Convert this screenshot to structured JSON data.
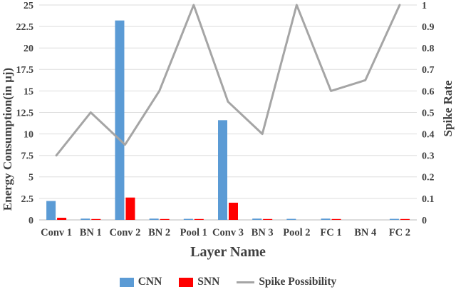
{
  "chart_data": {
    "type": "combo-bar-line",
    "categories": [
      "Conv 1",
      "BN 1",
      "Conv 2",
      "BN 2",
      "Pool 1",
      "Conv 3",
      "BN 3",
      "Pool 2",
      "FC 1",
      "BN 4",
      "FC 2"
    ],
    "series": [
      {
        "name": "CNN",
        "type": "bar",
        "axis": "left",
        "color": "#5B9BD5",
        "values": [
          2.2,
          0.15,
          23.2,
          0.15,
          0.12,
          11.6,
          0.15,
          0.12,
          0.15,
          0,
          0.12
        ]
      },
      {
        "name": "SNN",
        "type": "bar",
        "axis": "left",
        "color": "#FF0000",
        "values": [
          0.25,
          0.1,
          2.6,
          0.1,
          0.1,
          2.0,
          0.1,
          0,
          0.1,
          0,
          0.1
        ]
      },
      {
        "name": "Spike Possibility",
        "type": "line",
        "axis": "right",
        "color": "#A5A5A5",
        "values": [
          0.3,
          0.5,
          0.35,
          0.6,
          1.0,
          0.55,
          0.4,
          1.0,
          0.6,
          0.65,
          1.0
        ]
      }
    ],
    "left_axis": {
      "title": "Energy Consumption(in μj)",
      "min": 0,
      "max": 25,
      "ticks": [
        0,
        2.5,
        5,
        7.5,
        10,
        12.5,
        15,
        17.5,
        20,
        22.5,
        25
      ]
    },
    "right_axis": {
      "title": "Spike Rate",
      "min": 0,
      "max": 1,
      "ticks": [
        0,
        0.1,
        0.2,
        0.3,
        0.4,
        0.5,
        0.6,
        0.7,
        0.8,
        0.9,
        1
      ]
    },
    "x_axis": {
      "title": "Layer Name"
    },
    "grid": "horizontal",
    "legend_position": "bottom",
    "colors": {
      "gridline": "#DEDEDE",
      "baseline": "#C8C8C8",
      "text": "#404040"
    }
  }
}
